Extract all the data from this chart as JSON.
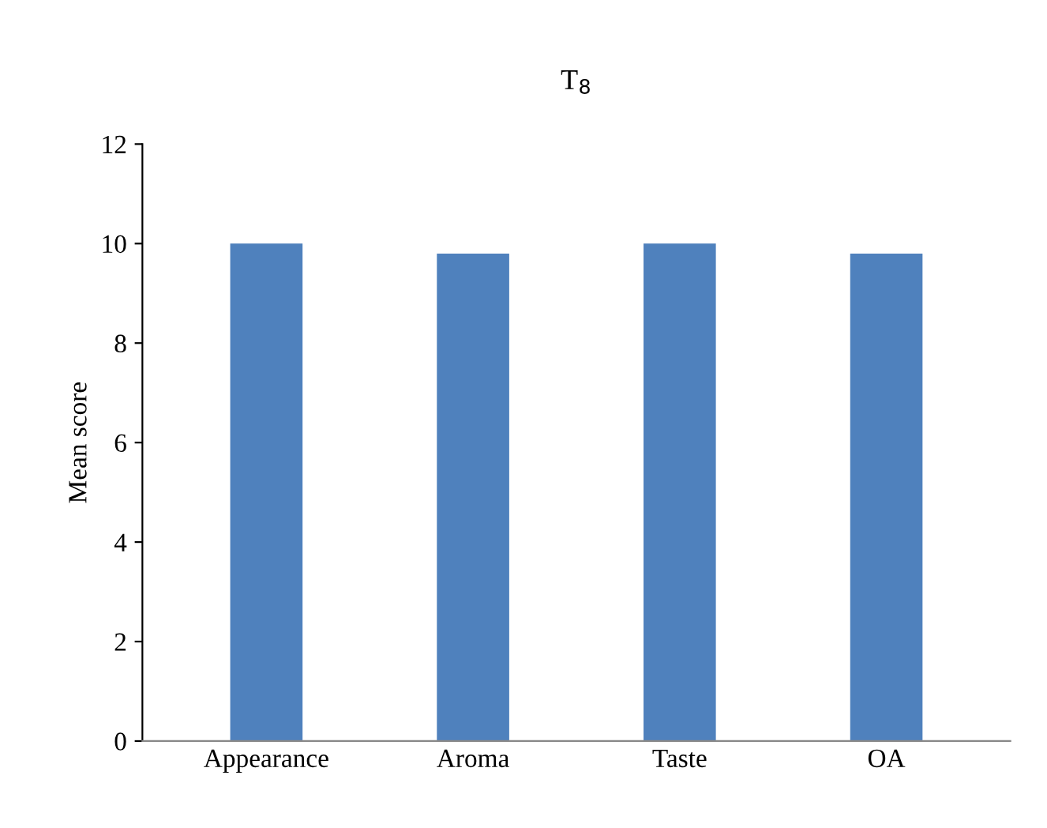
{
  "chart_data": {
    "type": "bar",
    "title": "T$_{8}$",
    "ylabel": "Mean score",
    "categories": [
      "Appearance",
      "Aroma",
      "Taste",
      "OA"
    ],
    "values": [
      10,
      9.8,
      10,
      9.8
    ],
    "color": "#4f81bd",
    "ylim": [
      0,
      12
    ],
    "yticks": [
      0,
      2,
      4,
      6,
      8,
      10,
      12
    ],
    "grid": false,
    "legend": false
  }
}
